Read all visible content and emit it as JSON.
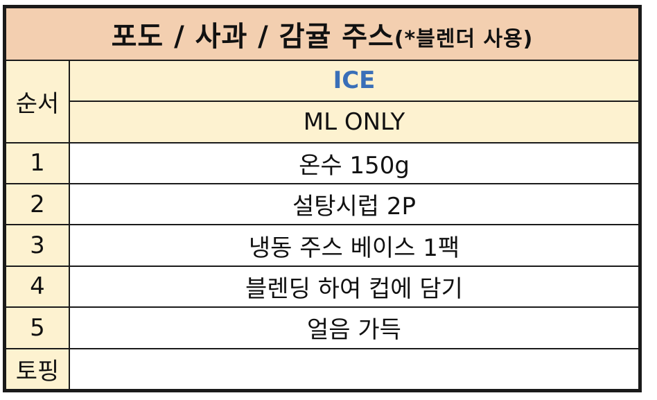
{
  "title": {
    "main": "포도 / 사과 / 감귤 주스",
    "suffix": "(*블렌더 사용)"
  },
  "header": {
    "order_label": "순서",
    "temperature": "ICE",
    "size": "ML ONLY"
  },
  "steps": [
    {
      "num": "1",
      "text": "온수 150g"
    },
    {
      "num": "2",
      "text": "설탕시럽 2P"
    },
    {
      "num": "3",
      "text": "냉동 주스 베이스 1팩"
    },
    {
      "num": "4",
      "text": "블렌딩 하여 컵에 담기"
    },
    {
      "num": "5",
      "text": "얼음 가득"
    }
  ],
  "topping": {
    "label": "토핑",
    "text": ""
  },
  "colors": {
    "title_bg": "#f3cfb0",
    "header_bg": "#fdf2d0",
    "ice_text": "#3a6fb8"
  }
}
